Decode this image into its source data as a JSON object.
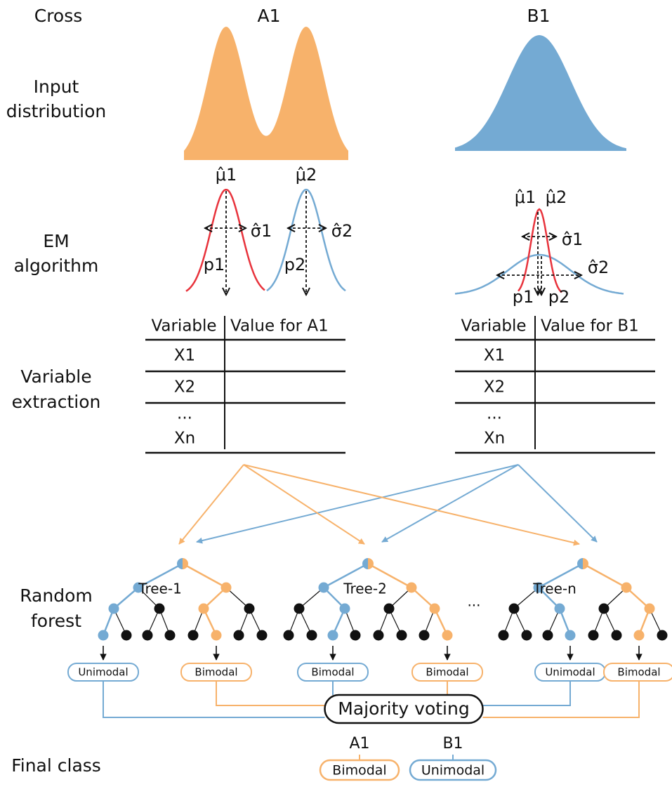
{
  "columns": [
    "Cross",
    "A1",
    "B1"
  ],
  "rows": {
    "input": [
      "Input",
      "distribution"
    ],
    "em": [
      "EM",
      "algorithm"
    ],
    "variable": [
      "Variable",
      "extraction"
    ],
    "forest": [
      "Random",
      "forest"
    ],
    "final": "Final class"
  },
  "em": [
    {
      "mu1": "μ̂1",
      "mu2": "μ̂2",
      "sigma1": "σ̂1",
      "sigma2": "σ̂2",
      "p1": "p1",
      "p2": "p2"
    },
    {
      "mu1": "μ̂1",
      "mu2": "μ̂2",
      "sigma1": "σ̂1",
      "sigma2": "σ̂2",
      "p1": "p1",
      "p2": "p2"
    }
  ],
  "tables": [
    {
      "header": [
        "Variable",
        "Value for A1"
      ],
      "rows": [
        "X1",
        "X2",
        "...",
        "Xn"
      ]
    },
    {
      "header": [
        "Variable",
        "Value for B1"
      ],
      "rows": [
        "X1",
        "X2",
        "...",
        "Xn"
      ]
    }
  ],
  "trees": [
    "Tree-1",
    "Tree-2",
    "Tree-n"
  ],
  "ellipsis": "...",
  "votes": [
    "Unimodal",
    "Bimodal",
    "Bimodal",
    "Bimodal",
    "Unimodal",
    "Bimodal"
  ],
  "voting": "Majority voting",
  "final": [
    {
      "cross": "A1",
      "class": "Bimodal"
    },
    {
      "cross": "B1",
      "class": "Unimodal"
    }
  ]
}
